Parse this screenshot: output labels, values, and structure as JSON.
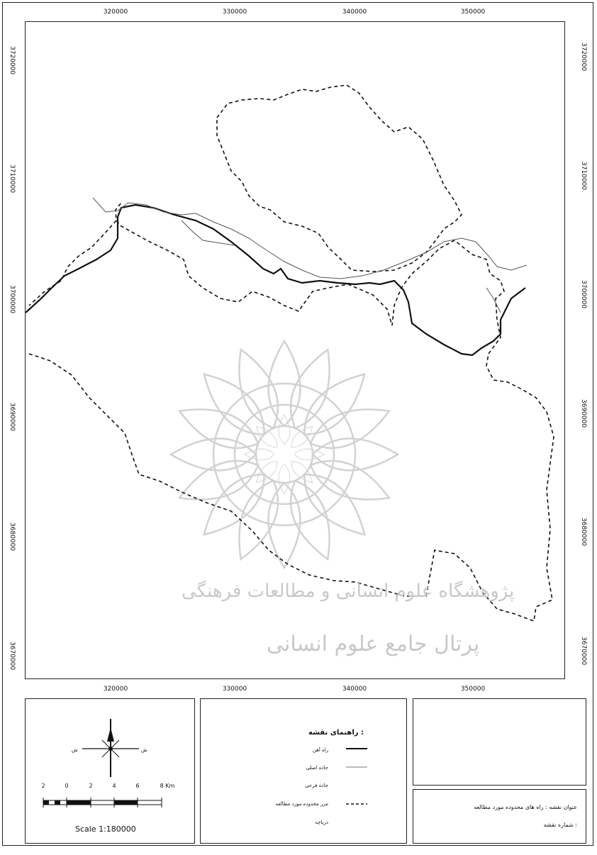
{
  "map": {
    "x_ticks": [
      "320000",
      "330000",
      "340000",
      "350000"
    ],
    "y_ticks": [
      "3720000",
      "3710000",
      "3700000",
      "3690000",
      "3680000",
      "3670000"
    ]
  },
  "legend": {
    "title": "راهنمای نقشه :",
    "items": [
      {
        "label": "راه آهن",
        "style": "solid-thick"
      },
      {
        "label": "جاده اصلی",
        "style": "solid-thin"
      },
      {
        "label": "جاده فرعی",
        "style": "none"
      },
      {
        "label": "مرز محدوده مورد مطالعه",
        "style": "dashed"
      },
      {
        "label": "دریاچه",
        "style": "none"
      }
    ]
  },
  "north_arrow": {
    "left_label": "ش",
    "right_label": "ش",
    "top_label": "",
    "bottom_label": ""
  },
  "scale": {
    "numbers": [
      "2",
      "0",
      "2",
      "4",
      "6",
      "8 Km"
    ],
    "text": "Scale 1:180000"
  },
  "title_box": {
    "line1": "عنوان نقشه : راه های محدوده مورد مطالعه",
    "line2": "شماره نقشه :"
  },
  "watermark": {
    "line1": "پژوهشگاه علوم انسانی و مطالعات فرهنگی",
    "line2": "پرتال جامع علوم انسانی"
  }
}
